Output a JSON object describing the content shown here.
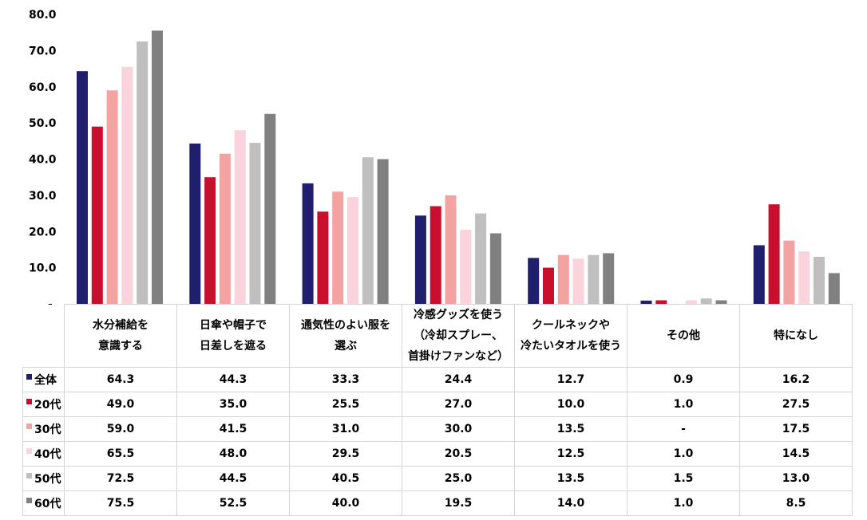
{
  "chart_data": {
    "type": "bar",
    "categories": [
      "水分補給を\n意識する",
      "日傘や帽子で\n日差しを遮る",
      "通気性のよい服を\n選ぶ",
      "冷感グッズを使う\n（冷却スプレー、\n首掛けファンなど）",
      "クールネックや\n冷たいタオルを使う",
      "その他",
      "特になし"
    ],
    "series": [
      {
        "name": "全体",
        "color": "#1f1f6e",
        "values": [
          64.3,
          44.3,
          33.3,
          24.4,
          12.7,
          0.9,
          16.2
        ],
        "labels": [
          "64.3",
          "44.3",
          "33.3",
          "24.4",
          "12.7",
          "0.9",
          "16.2"
        ]
      },
      {
        "name": "20代",
        "color": "#c8102e",
        "values": [
          49.0,
          35.0,
          25.5,
          27.0,
          10.0,
          1.0,
          27.5
        ],
        "labels": [
          "49.0",
          "35.0",
          "25.5",
          "27.0",
          "10.0",
          "1.0",
          "27.5"
        ]
      },
      {
        "name": "30代",
        "color": "#f4a3a3",
        "values": [
          59.0,
          41.5,
          31.0,
          30.0,
          13.5,
          0,
          17.5
        ],
        "labels": [
          "59.0",
          "41.5",
          "31.0",
          "30.0",
          "13.5",
          "-",
          "17.5"
        ]
      },
      {
        "name": "40代",
        "color": "#fbd3dc",
        "values": [
          65.5,
          48.0,
          29.5,
          20.5,
          12.5,
          1.0,
          14.5
        ],
        "labels": [
          "65.5",
          "48.0",
          "29.5",
          "20.5",
          "12.5",
          "1.0",
          "14.5"
        ]
      },
      {
        "name": "50代",
        "color": "#bfbfbf",
        "values": [
          72.5,
          44.5,
          40.5,
          25.0,
          13.5,
          1.5,
          13.0
        ],
        "labels": [
          "72.5",
          "44.5",
          "40.5",
          "25.0",
          "13.5",
          "1.5",
          "13.0"
        ]
      },
      {
        "name": "60代",
        "color": "#808080",
        "values": [
          75.5,
          52.5,
          40.0,
          19.5,
          14.0,
          1.0,
          8.5
        ],
        "labels": [
          "75.5",
          "52.5",
          "40.0",
          "19.5",
          "14.0",
          "1.0",
          "8.5"
        ]
      }
    ],
    "yticks": [
      "-",
      "10.0",
      "20.0",
      "30.0",
      "40.0",
      "50.0",
      "60.0",
      "70.0",
      "80.0"
    ],
    "ylim": [
      0,
      80
    ],
    "legend": "data-table-left",
    "grid": false,
    "title": "",
    "xlabel": "",
    "ylabel": ""
  }
}
